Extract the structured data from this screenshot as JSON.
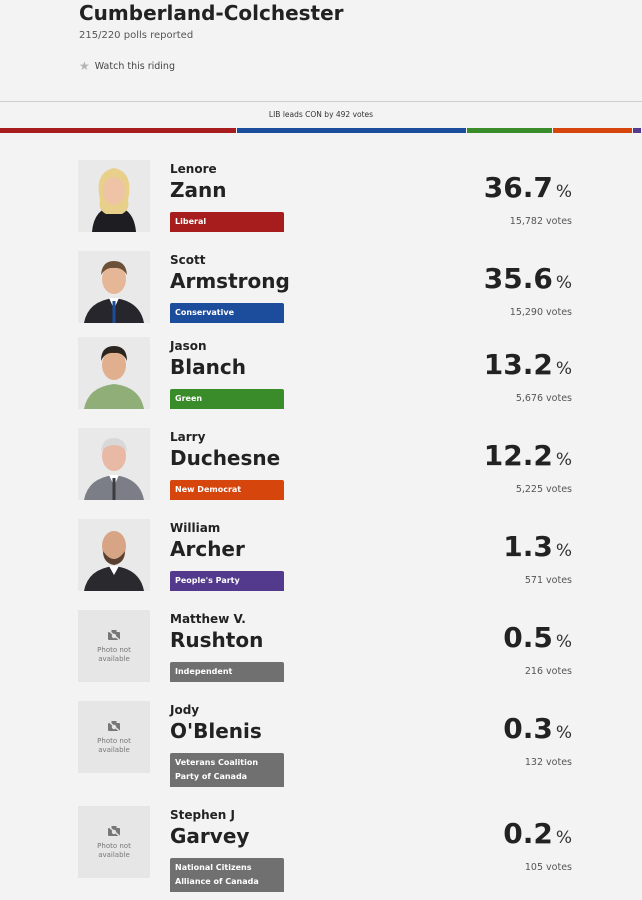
{
  "riding": {
    "name": "Cumberland-Colchester",
    "polls_reported": "215/220 polls reported",
    "watch_label": "Watch this riding",
    "lead_text": "LIB leads CON by 492 votes"
  },
  "seat_bar": [
    {
      "party": "Liberal",
      "pct": 36.7,
      "color": "#a71d1d"
    },
    {
      "party": "Conservative",
      "pct": 35.6,
      "color": "#1c4c9c"
    },
    {
      "party": "Green",
      "pct": 13.2,
      "color": "#3a8c2a"
    },
    {
      "party": "New Democrat",
      "pct": 12.2,
      "color": "#d6460c"
    },
    {
      "party": "People's Party",
      "pct": 1.3,
      "color": "#543a8c"
    }
  ],
  "candidates": [
    {
      "first": "Lenore",
      "last": "Zann",
      "party": "Liberal",
      "party_color": "#a71d1d",
      "pct": "36.7",
      "pct_symbol": "%",
      "votes": "15,782 votes"
    },
    {
      "first": "Scott",
      "last": "Armstrong",
      "party": "Conservative",
      "party_color": "#1c4c9c",
      "pct": "35.6",
      "pct_symbol": "%",
      "votes": "15,290 votes"
    },
    {
      "first": "Jason",
      "last": "Blanch",
      "party": "Green",
      "party_color": "#3a8c2a",
      "pct": "13.2",
      "pct_symbol": "%",
      "votes": "5,676 votes"
    },
    {
      "first": "Larry",
      "last": "Duchesne",
      "party": "New Democrat",
      "party_color": "#d6460c",
      "pct": "12.2",
      "pct_symbol": "%",
      "votes": "5,225 votes"
    },
    {
      "first": "William",
      "last": "Archer",
      "party": "People's Party",
      "party_color": "#543a8c",
      "pct": "1.3",
      "pct_symbol": "%",
      "votes": "571 votes"
    },
    {
      "first": "Matthew V.",
      "last": "Rushton",
      "party": "Independent",
      "party_color": "#707070",
      "pct": "0.5",
      "pct_symbol": "%",
      "votes": "216 votes",
      "no_photo_text": "Photo not available"
    },
    {
      "first": "Jody",
      "last": "O'Blenis",
      "party": "Veterans Coalition Party of Canada",
      "party_color": "#707070",
      "pct": "0.3",
      "pct_symbol": "%",
      "votes": "132 votes",
      "no_photo_text": "Photo not available"
    },
    {
      "first": "Stephen J",
      "last": "Garvey",
      "party": "National Citizens Alliance of Canada",
      "party_color": "#707070",
      "pct": "0.2",
      "pct_symbol": "%",
      "votes": "105 votes",
      "no_photo_text": "Photo not available"
    }
  ]
}
